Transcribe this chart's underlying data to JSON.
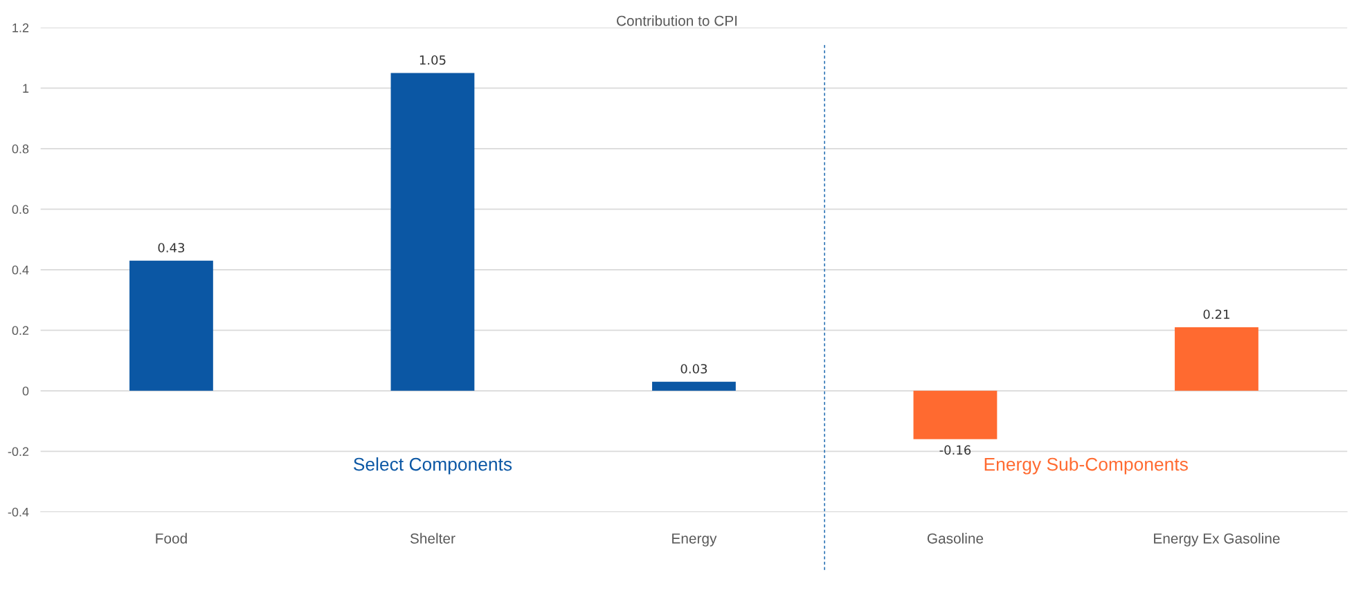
{
  "chart_data": {
    "type": "bar",
    "title": "Contribution to CPI",
    "categories": [
      "Food",
      "Shelter",
      "Energy",
      "Gasoline",
      "Energy Ex Gasoline"
    ],
    "series": [
      {
        "name": "Select Components",
        "color": "#0b57a4",
        "values": [
          0.43,
          1.05,
          0.03,
          null,
          null
        ]
      },
      {
        "name": "Energy Sub-Components",
        "color": "#ff6a30",
        "values": [
          null,
          null,
          null,
          -0.16,
          0.21
        ]
      }
    ],
    "data_labels": true,
    "ylim": [
      -0.4,
      1.2
    ],
    "yticks": [
      -0.4,
      -0.2,
      0,
      0.2,
      0.4,
      0.6,
      0.8,
      1,
      1.2
    ],
    "grid": "y",
    "legend": false
  }
}
